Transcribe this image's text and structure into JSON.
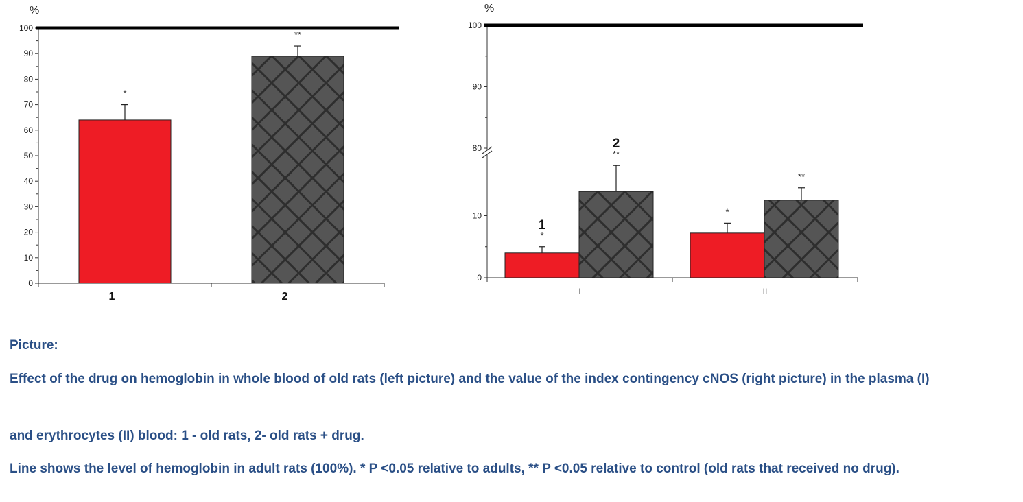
{
  "chart_data": [
    {
      "type": "bar",
      "ylabel": "%",
      "categories": [
        "1",
        "2"
      ],
      "values": [
        64,
        89
      ],
      "errors": [
        6,
        4
      ],
      "bar_colors": [
        "#ee1c25",
        "#555555"
      ],
      "bar_patterns": [
        "solid",
        "crosshatch"
      ],
      "significance": [
        "*",
        "**"
      ],
      "ylim": [
        0,
        100
      ],
      "yticks": [
        "0",
        "10",
        "20",
        "30",
        "40",
        "50",
        "60",
        "70",
        "80",
        "90",
        "100"
      ],
      "reference_line": 100,
      "grid": false
    },
    {
      "type": "bar",
      "ylabel": "%",
      "categories": [
        "I",
        "II"
      ],
      "series": [
        {
          "name": "1",
          "values": [
            4,
            7.2
          ],
          "errors": [
            1,
            1.6
          ],
          "color": "#ee1c25",
          "significance": [
            "*",
            "*"
          ]
        },
        {
          "name": "2",
          "values": [
            13.9,
            12.5
          ],
          "errors": [
            4.2,
            2
          ],
          "color": "#555555",
          "significance": [
            "**",
            "**"
          ]
        }
      ],
      "axis_break": [
        20,
        80
      ],
      "ylim": [
        0,
        100
      ],
      "yticks": [
        "0",
        "10",
        "80",
        "90",
        "100"
      ],
      "reference_line": 100,
      "grid": false
    }
  ],
  "caption": {
    "title": "Picture:",
    "p1": "Effect of the drug on hemoglobin in whole blood of old rats (left picture) and the value of the index contingency cNOS (right picture) in the plasma (I)",
    "p2": "and erythrocytes (II) blood: 1 - old rats, 2- old rats + drug.",
    "p3": "Line shows the level of hemoglobin in adult rats (100%). * P <0.05 relative to adults, ** P <0.05 relative to control (old rats that received no drug)."
  }
}
